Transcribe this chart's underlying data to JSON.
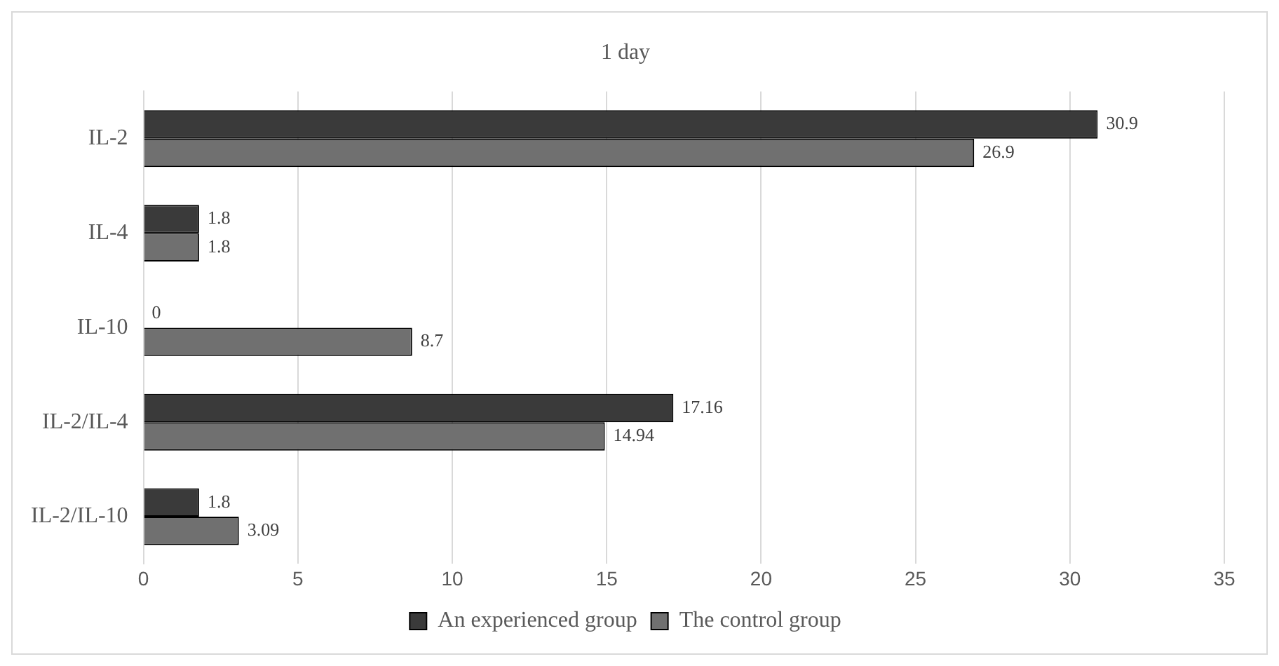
{
  "chart_data": {
    "type": "bar",
    "orientation": "horizontal",
    "title": "1 day",
    "categories": [
      "IL-2",
      "IL-4",
      "IL-10",
      "IL-2/IL-4",
      "IL-2/IL-10"
    ],
    "series": [
      {
        "name": "An experienced group",
        "color": "#3a3a3a",
        "values": [
          30.9,
          1.8,
          0,
          17.16,
          1.8
        ]
      },
      {
        "name": "The control group",
        "color": "#707070",
        "values": [
          26.9,
          1.8,
          8.7,
          14.94,
          3.09
        ]
      }
    ],
    "xlim": [
      0,
      35
    ],
    "xticks": [
      0,
      5,
      10,
      15,
      20,
      25,
      30,
      35
    ],
    "grid": "x",
    "legend": "bottom",
    "data_labels": true
  }
}
